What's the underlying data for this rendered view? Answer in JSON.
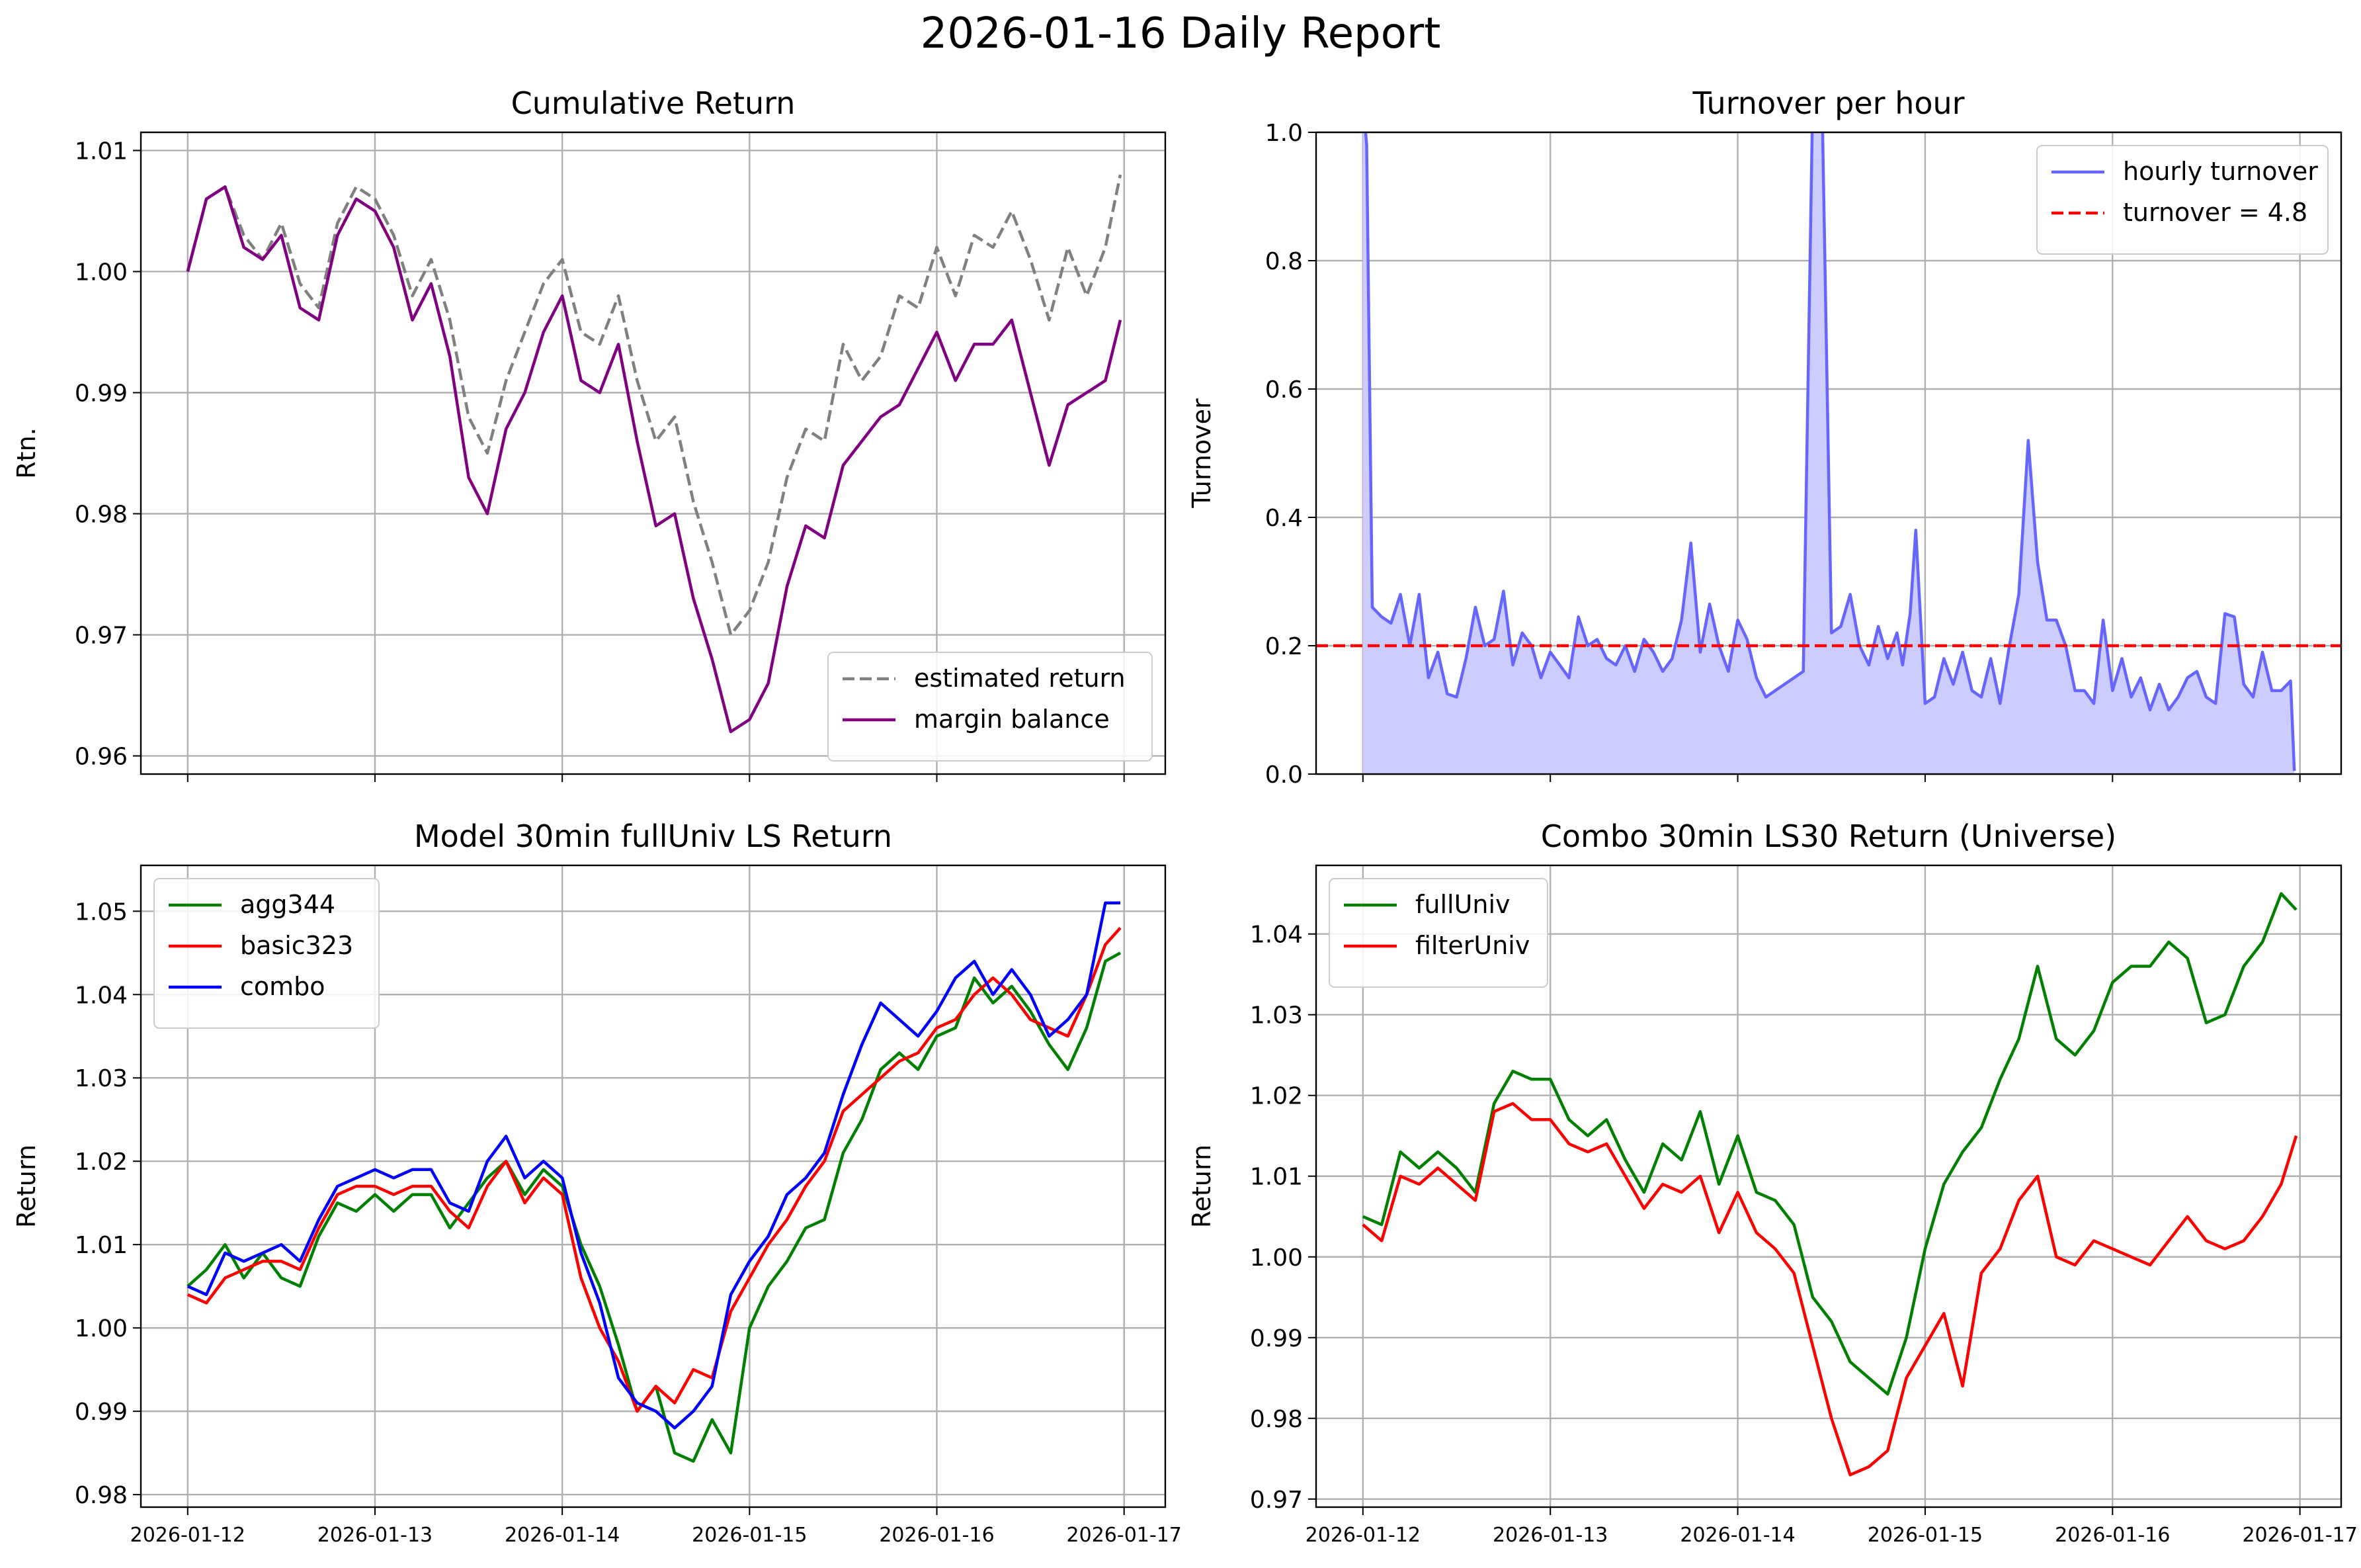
{
  "suptitle": "2026-01-16 Daily Report",
  "colors": {
    "grid": "#b0b0b0",
    "gray": "#808080",
    "purple": "#800080",
    "green": "#008000",
    "red": "#ff0000",
    "blue": "#0000ff",
    "turnover_line": "#6666ff",
    "turnover_fill": "#ccccff",
    "threshold": "#ff0000"
  },
  "x_dates": [
    "2026-01-12",
    "2026-01-13",
    "2026-01-14",
    "2026-01-15",
    "2026-01-16",
    "2026-01-17"
  ],
  "chart_data": [
    {
      "id": "cumret",
      "type": "line",
      "title": "Cumulative Return",
      "xlabel": "",
      "ylabel": "Rtn.",
      "xlim": [
        -0.25,
        5.22
      ],
      "ylim": [
        0.9585,
        1.0115
      ],
      "yticks": [
        0.96,
        0.97,
        0.98,
        0.99,
        1.0,
        1.01
      ],
      "ytick_labels": [
        "0.96",
        "0.97",
        "0.98",
        "0.99",
        "1.00",
        "1.01"
      ],
      "xtick_labels_shown": false,
      "legend_loc": "lower right",
      "x": [
        0,
        0.1,
        0.2,
        0.3,
        0.4,
        0.5,
        0.6,
        0.7,
        0.8,
        0.9,
        1,
        1.1,
        1.2,
        1.3,
        1.4,
        1.5,
        1.6,
        1.7,
        1.8,
        1.9,
        2,
        2.1,
        2.2,
        2.3,
        2.4,
        2.5,
        2.6,
        2.7,
        2.8,
        2.9,
        3,
        3.1,
        3.2,
        3.3,
        3.4,
        3.5,
        3.6,
        3.7,
        3.8,
        3.9,
        4,
        4.1,
        4.2,
        4.3,
        4.4,
        4.5,
        4.6,
        4.7,
        4.8,
        4.9,
        4.98
      ],
      "series": [
        {
          "name": "estimated return",
          "style": "dashed",
          "color": "gray",
          "values": [
            1.0,
            1.006,
            1.007,
            1.003,
            1.001,
            1.004,
            0.999,
            0.997,
            1.004,
            1.007,
            1.006,
            1.003,
            0.998,
            1.001,
            0.996,
            0.988,
            0.985,
            0.991,
            0.995,
            0.999,
            1.001,
            0.995,
            0.994,
            0.998,
            0.991,
            0.986,
            0.988,
            0.981,
            0.976,
            0.97,
            0.972,
            0.976,
            0.983,
            0.987,
            0.986,
            0.994,
            0.991,
            0.993,
            0.998,
            0.997,
            1.002,
            0.998,
            1.003,
            1.002,
            1.005,
            1.001,
            0.996,
            1.002,
            0.998,
            1.002,
            1.008
          ]
        },
        {
          "name": "margin balance",
          "style": "solid",
          "color": "purple",
          "values": [
            1.0,
            1.006,
            1.007,
            1.002,
            1.001,
            1.003,
            0.997,
            0.996,
            1.003,
            1.006,
            1.005,
            1.002,
            0.996,
            0.999,
            0.993,
            0.983,
            0.98,
            0.987,
            0.99,
            0.995,
            0.998,
            0.991,
            0.99,
            0.994,
            0.986,
            0.979,
            0.98,
            0.973,
            0.968,
            0.962,
            0.963,
            0.966,
            0.974,
            0.979,
            0.978,
            0.984,
            0.986,
            0.988,
            0.989,
            0.992,
            0.995,
            0.991,
            0.994,
            0.994,
            0.996,
            0.99,
            0.984,
            0.989,
            0.99,
            0.991,
            0.996
          ]
        }
      ]
    },
    {
      "id": "turnover",
      "type": "area",
      "title": "Turnover per hour",
      "xlabel": "",
      "ylabel": "Turnover",
      "xlim": [
        -0.25,
        5.22
      ],
      "ylim": [
        0,
        1.0
      ],
      "yticks": [
        0.0,
        0.2,
        0.4,
        0.6,
        0.8,
        1.0
      ],
      "ytick_labels": [
        "0.0",
        "0.2",
        "0.4",
        "0.6",
        "0.8",
        "1.0"
      ],
      "xtick_labels_shown": false,
      "legend_loc": "upper right",
      "x": [
        0,
        0.02,
        0.05,
        0.1,
        0.15,
        0.2,
        0.25,
        0.3,
        0.35,
        0.4,
        0.45,
        0.5,
        0.55,
        0.6,
        0.65,
        0.7,
        0.75,
        0.8,
        0.85,
        0.9,
        0.95,
        1.0,
        1.05,
        1.1,
        1.15,
        1.2,
        1.25,
        1.3,
        1.35,
        1.4,
        1.45,
        1.5,
        1.55,
        1.6,
        1.65,
        1.7,
        1.75,
        1.8,
        1.85,
        1.9,
        1.95,
        2.0,
        2.05,
        2.1,
        2.15,
        2.2,
        2.25,
        2.3,
        2.35,
        2.4,
        2.45,
        2.5,
        2.55,
        2.6,
        2.65,
        2.7,
        2.75,
        2.8,
        2.85,
        2.88,
        2.92,
        2.95,
        3.0,
        3.05,
        3.1,
        3.15,
        3.2,
        3.25,
        3.3,
        3.35,
        3.4,
        3.45,
        3.5,
        3.55,
        3.6,
        3.65,
        3.7,
        3.75,
        3.8,
        3.85,
        3.9,
        3.95,
        4.0,
        4.05,
        4.1,
        4.15,
        4.2,
        4.25,
        4.3,
        4.35,
        4.4,
        4.45,
        4.5,
        4.55,
        4.6,
        4.65,
        4.7,
        4.75,
        4.8,
        4.85,
        4.9,
        4.95,
        4.97
      ],
      "series": [
        {
          "name": "hourly turnover",
          "style": "solid",
          "color": "turnover_line",
          "values": [
            1.05,
            0.98,
            0.26,
            0.245,
            0.235,
            0.28,
            0.2,
            0.28,
            0.15,
            0.19,
            0.125,
            0.12,
            0.18,
            0.26,
            0.2,
            0.21,
            0.285,
            0.17,
            0.22,
            0.2,
            0.15,
            0.19,
            0.17,
            0.15,
            0.245,
            0.2,
            0.21,
            0.18,
            0.17,
            0.2,
            0.16,
            0.21,
            0.19,
            0.16,
            0.18,
            0.24,
            0.36,
            0.19,
            0.265,
            0.2,
            0.16,
            0.24,
            0.21,
            0.15,
            0.12,
            0.13,
            0.14,
            0.15,
            0.16,
            1.05,
            1.05,
            0.22,
            0.23,
            0.28,
            0.2,
            0.17,
            0.23,
            0.18,
            0.22,
            0.17,
            0.25,
            0.38,
            0.11,
            0.12,
            0.18,
            0.14,
            0.19,
            0.13,
            0.12,
            0.18,
            0.11,
            0.2,
            0.28,
            0.52,
            0.33,
            0.24,
            0.24,
            0.2,
            0.13,
            0.13,
            0.11,
            0.24,
            0.13,
            0.18,
            0.12,
            0.15,
            0.1,
            0.14,
            0.1,
            0.12,
            0.15,
            0.16,
            0.12,
            0.11,
            0.25,
            0.245,
            0.14,
            0.12,
            0.19,
            0.13,
            0.13,
            0.145,
            0.005
          ]
        },
        {
          "name": "turnover = 4.8",
          "style": "dashed",
          "color": "threshold",
          "hline": 0.2
        }
      ]
    },
    {
      "id": "model",
      "type": "line",
      "title": "Model 30min fullUniv LS Return",
      "xlabel": "",
      "ylabel": "Return",
      "xlim": [
        -0.25,
        5.22
      ],
      "ylim": [
        0.9785,
        1.0555
      ],
      "yticks": [
        0.98,
        0.99,
        1.0,
        1.01,
        1.02,
        1.03,
        1.04,
        1.05
      ],
      "ytick_labels": [
        "0.98",
        "0.99",
        "1.00",
        "1.01",
        "1.02",
        "1.03",
        "1.04",
        "1.05"
      ],
      "xtick_labels_shown": true,
      "legend_loc": "upper left",
      "x": [
        0,
        0.1,
        0.2,
        0.3,
        0.4,
        0.5,
        0.6,
        0.7,
        0.8,
        0.9,
        1,
        1.1,
        1.2,
        1.3,
        1.4,
        1.5,
        1.6,
        1.7,
        1.8,
        1.9,
        2,
        2.1,
        2.2,
        2.3,
        2.4,
        2.5,
        2.6,
        2.7,
        2.8,
        2.9,
        3,
        3.1,
        3.2,
        3.3,
        3.4,
        3.5,
        3.6,
        3.7,
        3.8,
        3.9,
        4,
        4.1,
        4.2,
        4.3,
        4.4,
        4.5,
        4.6,
        4.7,
        4.8,
        4.9,
        4.98
      ],
      "series": [
        {
          "name": "agg344",
          "style": "solid",
          "color": "green",
          "values": [
            1.005,
            1.007,
            1.01,
            1.006,
            1.009,
            1.006,
            1.005,
            1.011,
            1.015,
            1.014,
            1.016,
            1.014,
            1.016,
            1.016,
            1.012,
            1.015,
            1.018,
            1.02,
            1.016,
            1.019,
            1.017,
            1.01,
            1.005,
            0.998,
            0.99,
            0.993,
            0.985,
            0.984,
            0.989,
            0.985,
            1.0,
            1.005,
            1.008,
            1.012,
            1.013,
            1.021,
            1.025,
            1.031,
            1.033,
            1.031,
            1.035,
            1.036,
            1.042,
            1.039,
            1.041,
            1.038,
            1.034,
            1.031,
            1.036,
            1.044,
            1.045
          ]
        },
        {
          "name": "basic323",
          "style": "solid",
          "color": "red",
          "values": [
            1.004,
            1.003,
            1.006,
            1.007,
            1.008,
            1.008,
            1.007,
            1.012,
            1.016,
            1.017,
            1.017,
            1.016,
            1.017,
            1.017,
            1.014,
            1.012,
            1.017,
            1.02,
            1.015,
            1.018,
            1.016,
            1.006,
            1.0,
            0.996,
            0.99,
            0.993,
            0.991,
            0.995,
            0.994,
            1.002,
            1.006,
            1.01,
            1.013,
            1.017,
            1.02,
            1.026,
            1.028,
            1.03,
            1.032,
            1.033,
            1.036,
            1.037,
            1.04,
            1.042,
            1.04,
            1.037,
            1.036,
            1.035,
            1.04,
            1.046,
            1.048
          ]
        },
        {
          "name": "combo",
          "style": "solid",
          "color": "blue",
          "values": [
            1.005,
            1.004,
            1.009,
            1.008,
            1.009,
            1.01,
            1.008,
            1.013,
            1.017,
            1.018,
            1.019,
            1.018,
            1.019,
            1.019,
            1.015,
            1.014,
            1.02,
            1.023,
            1.018,
            1.02,
            1.018,
            1.009,
            1.003,
            0.994,
            0.991,
            0.99,
            0.988,
            0.99,
            0.993,
            1.004,
            1.008,
            1.011,
            1.016,
            1.018,
            1.021,
            1.028,
            1.034,
            1.039,
            1.037,
            1.035,
            1.038,
            1.042,
            1.044,
            1.04,
            1.043,
            1.04,
            1.035,
            1.037,
            1.04,
            1.051,
            1.051
          ]
        }
      ]
    },
    {
      "id": "combo_univ",
      "type": "line",
      "title": "Combo 30min LS30 Return (Universe)",
      "xlabel": "",
      "ylabel": "Return",
      "xlim": [
        -0.25,
        5.22
      ],
      "ylim": [
        0.969,
        1.0485
      ],
      "yticks": [
        0.97,
        0.98,
        0.99,
        1.0,
        1.01,
        1.02,
        1.03,
        1.04
      ],
      "ytick_labels": [
        "0.97",
        "0.98",
        "0.99",
        "1.00",
        "1.01",
        "1.02",
        "1.03",
        "1.04"
      ],
      "xtick_labels_shown": true,
      "legend_loc": "upper left",
      "x": [
        0,
        0.1,
        0.2,
        0.3,
        0.4,
        0.5,
        0.6,
        0.7,
        0.8,
        0.9,
        1,
        1.1,
        1.2,
        1.3,
        1.4,
        1.5,
        1.6,
        1.7,
        1.8,
        1.9,
        2,
        2.1,
        2.2,
        2.3,
        2.4,
        2.5,
        2.6,
        2.7,
        2.8,
        2.9,
        3,
        3.1,
        3.2,
        3.3,
        3.4,
        3.5,
        3.6,
        3.7,
        3.8,
        3.9,
        4,
        4.1,
        4.2,
        4.3,
        4.4,
        4.5,
        4.6,
        4.7,
        4.8,
        4.9,
        4.98
      ],
      "series": [
        {
          "name": "fullUniv",
          "style": "solid",
          "color": "green",
          "values": [
            1.005,
            1.004,
            1.013,
            1.011,
            1.013,
            1.011,
            1.008,
            1.019,
            1.023,
            1.022,
            1.022,
            1.017,
            1.015,
            1.017,
            1.012,
            1.008,
            1.014,
            1.012,
            1.018,
            1.009,
            1.015,
            1.008,
            1.007,
            1.004,
            0.995,
            0.992,
            0.987,
            0.985,
            0.983,
            0.99,
            1.001,
            1.009,
            1.013,
            1.016,
            1.022,
            1.027,
            1.036,
            1.027,
            1.025,
            1.028,
            1.034,
            1.036,
            1.036,
            1.039,
            1.037,
            1.029,
            1.03,
            1.036,
            1.039,
            1.045,
            1.043
          ]
        },
        {
          "name": "filterUniv",
          "style": "solid",
          "color": "red",
          "values": [
            1.004,
            1.002,
            1.01,
            1.009,
            1.011,
            1.009,
            1.007,
            1.018,
            1.019,
            1.017,
            1.017,
            1.014,
            1.013,
            1.014,
            1.01,
            1.006,
            1.009,
            1.008,
            1.01,
            1.003,
            1.008,
            1.003,
            1.001,
            0.998,
            0.989,
            0.98,
            0.973,
            0.974,
            0.976,
            0.985,
            0.989,
            0.993,
            0.984,
            0.998,
            1.001,
            1.007,
            1.01,
            1.0,
            0.999,
            1.002,
            1.001,
            1.0,
            0.999,
            1.002,
            1.005,
            1.002,
            1.001,
            1.002,
            1.005,
            1.009,
            1.015
          ]
        }
      ]
    }
  ]
}
